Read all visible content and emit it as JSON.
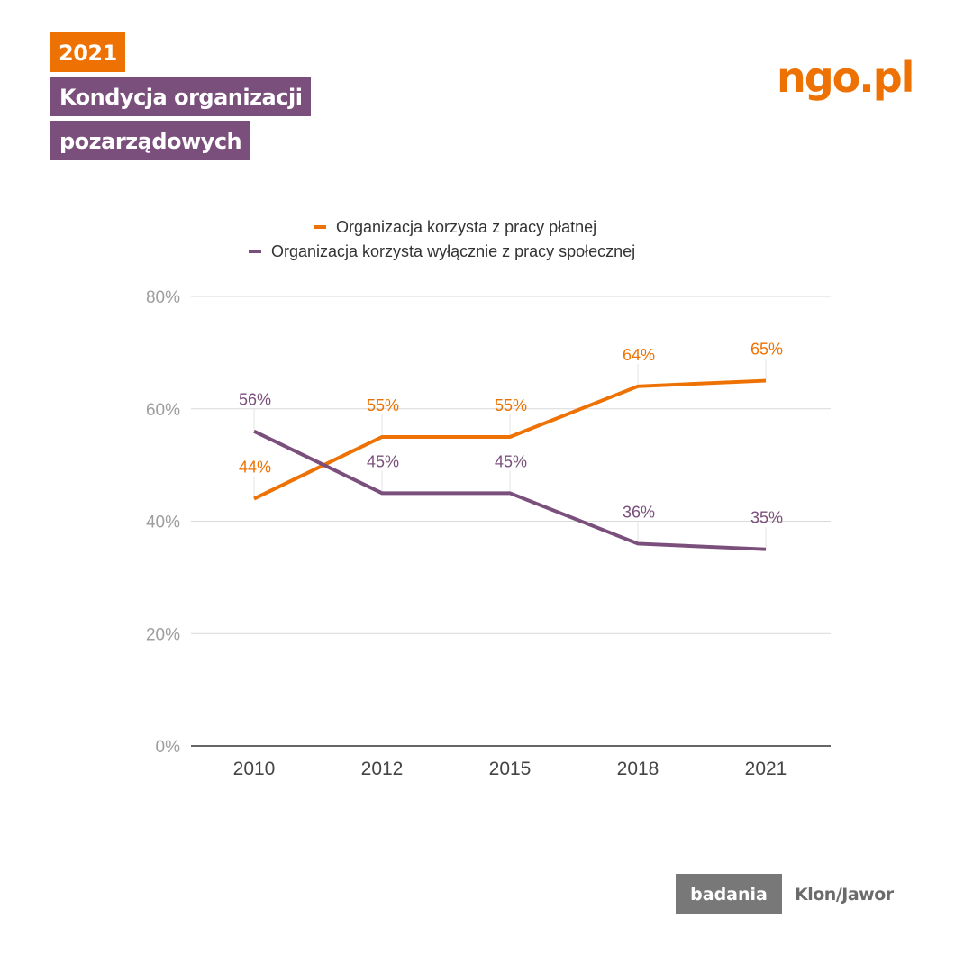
{
  "header": {
    "year_tag": "2021",
    "title_line1": "Kondycja organizacji",
    "title_line2": "pozarządowych",
    "logo": "ngo.pl"
  },
  "footer": {
    "badge": "badania",
    "org": "Klon/Jawor"
  },
  "colors": {
    "orange": "#ee7203",
    "purple": "#7a4f7b",
    "grid": "#d9d9d9",
    "axis": "#333333"
  },
  "chart_data": {
    "type": "line",
    "title": "",
    "xlabel": "",
    "ylabel": "",
    "categories": [
      "2010",
      "2012",
      "2015",
      "2018",
      "2021"
    ],
    "ylim": [
      0,
      80
    ],
    "yticks": [
      0,
      20,
      40,
      60,
      80
    ],
    "ytick_labels": [
      "0%",
      "20%",
      "40%",
      "60%",
      "80%"
    ],
    "grid": true,
    "legend_position": "top",
    "series": [
      {
        "name": "Organizacja korzysta z pracy płatnej",
        "color": "#ee7203",
        "values": [
          44,
          55,
          55,
          64,
          65
        ],
        "labels": [
          "44%",
          "55%",
          "55%",
          "64%",
          "65%"
        ]
      },
      {
        "name": "Organizacja korzysta wyłącznie z pracy społecznej",
        "color": "#7a4f7b",
        "values": [
          56,
          45,
          45,
          36,
          35
        ],
        "labels": [
          "56%",
          "45%",
          "45%",
          "36%",
          "35%"
        ]
      }
    ]
  }
}
